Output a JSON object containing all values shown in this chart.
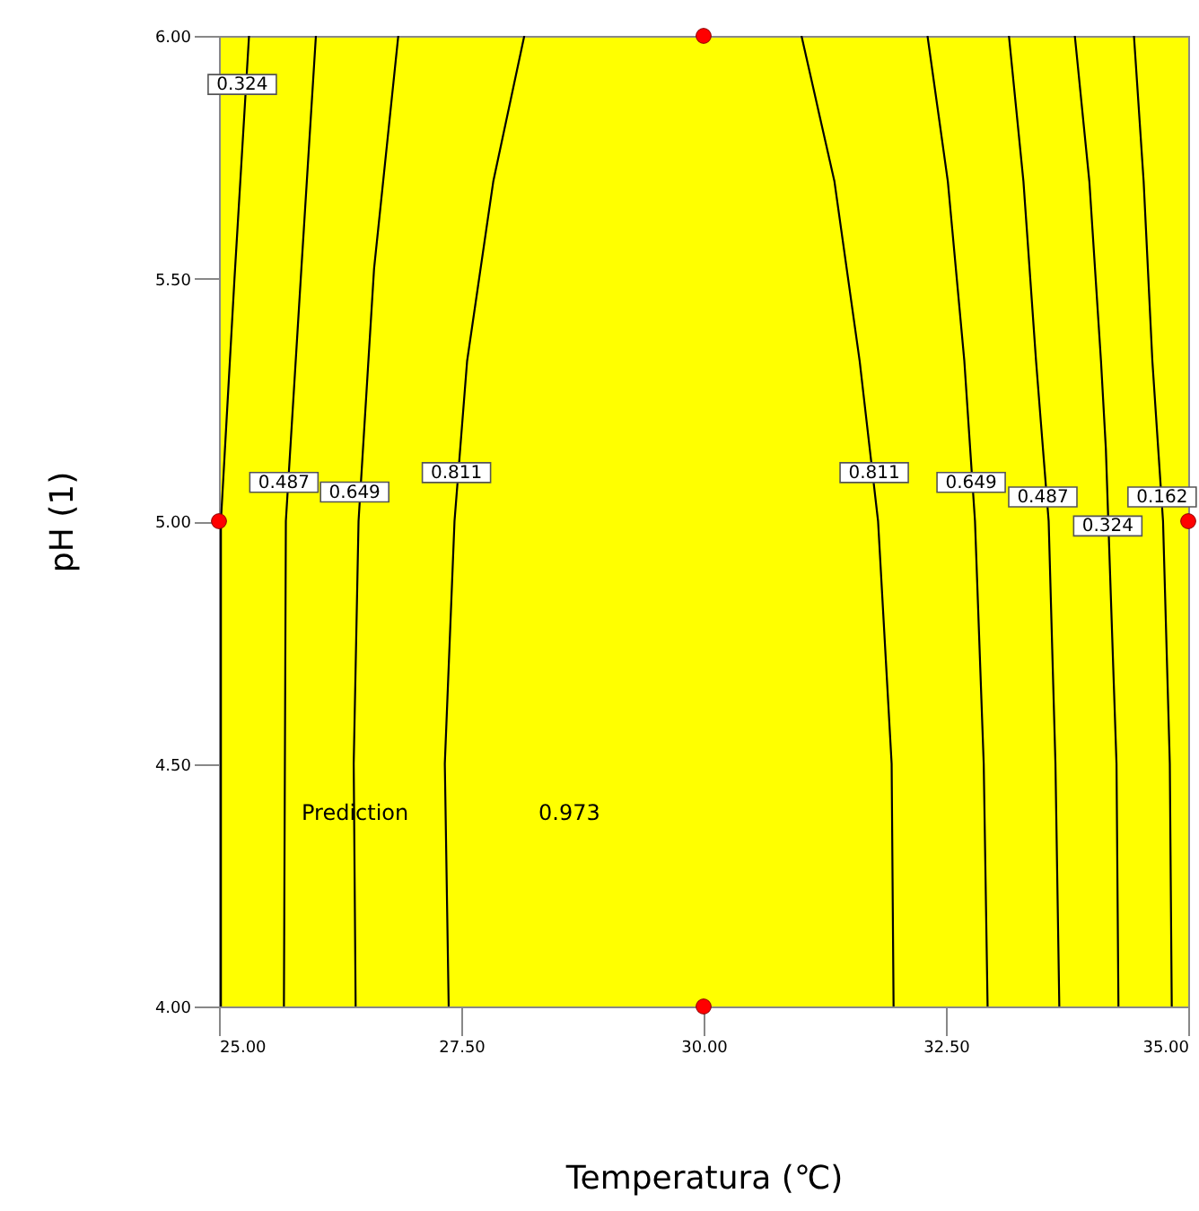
{
  "chart_data": {
    "type": "line",
    "xlabel": "Temperatura (℃)",
    "ylabel": "pH (1)",
    "xlim": [
      25,
      35
    ],
    "ylim": [
      4,
      6
    ],
    "xticks": [
      {
        "value": 25,
        "label": "25.00"
      },
      {
        "value": 27.5,
        "label": "27.50"
      },
      {
        "value": 30,
        "label": "30.00"
      },
      {
        "value": 32.5,
        "label": "32.50"
      },
      {
        "value": 35,
        "label": "35.00"
      }
    ],
    "yticks": [
      {
        "value": 4,
        "label": "4.00"
      },
      {
        "value": 4.5,
        "label": "4.50"
      },
      {
        "value": 5,
        "label": "5.00"
      },
      {
        "value": 5.5,
        "label": "5.50"
      },
      {
        "value": 6,
        "label": "6.00"
      }
    ],
    "grid": false,
    "series": [
      {
        "color": "#000000",
        "marker": "none",
        "x": [
          25.31,
          25.16,
          25.02,
          25.02
        ],
        "values": [
          6.0,
          5.5,
          5.0,
          4.0
        ]
      },
      {
        "color": "#000000",
        "marker": "none",
        "x": [
          26.0,
          25.85,
          25.69,
          25.67
        ],
        "values": [
          6.0,
          5.52,
          5.0,
          4.0
        ]
      },
      {
        "color": "#000000",
        "marker": "none",
        "x": [
          26.85,
          26.6,
          26.44,
          26.39,
          26.41
        ],
        "values": [
          6.0,
          5.52,
          5.0,
          4.5,
          4.0
        ]
      },
      {
        "color": "#000000",
        "marker": "none",
        "x": [
          28.15,
          27.83,
          27.56,
          27.43,
          27.33,
          27.37
        ],
        "values": [
          6.0,
          5.7,
          5.33,
          5.0,
          4.5,
          4.0
        ]
      },
      {
        "color": "#000000",
        "marker": "none",
        "x": [
          31.01,
          31.35,
          31.61,
          31.8,
          31.94,
          31.96
        ],
        "values": [
          6.0,
          5.7,
          5.33,
          5.0,
          4.5,
          4.0
        ]
      },
      {
        "color": "#000000",
        "marker": "none",
        "x": [
          32.31,
          32.52,
          32.69,
          32.8,
          32.89,
          32.93
        ],
        "values": [
          6.0,
          5.7,
          5.33,
          5.0,
          4.5,
          4.0
        ]
      },
      {
        "color": "#000000",
        "marker": "none",
        "x": [
          33.15,
          33.3,
          33.43,
          33.56,
          33.63,
          33.67
        ],
        "values": [
          6.0,
          5.7,
          5.33,
          5.0,
          4.5,
          4.0
        ]
      },
      {
        "color": "#000000",
        "marker": "none",
        "x": [
          33.83,
          33.98,
          34.1,
          34.15,
          34.26,
          34.28
        ],
        "values": [
          6.0,
          5.7,
          5.33,
          5.15,
          4.5,
          4.0
        ]
      },
      {
        "color": "#000000",
        "marker": "none",
        "x": [
          34.44,
          34.54,
          34.63,
          34.74,
          34.81,
          34.83
        ],
        "values": [
          6.0,
          5.7,
          5.33,
          5.0,
          4.5,
          4.0
        ]
      },
      {
        "type": "scatter",
        "color": "#ff0000",
        "marker": "circle",
        "x": [
          30,
          25,
          30,
          35
        ],
        "values": [
          6,
          5,
          4,
          5
        ]
      }
    ],
    "annotations": [
      {
        "text": "0.324",
        "x": 25.24,
        "y": 5.9
      },
      {
        "text": "0.487",
        "x": 25.67,
        "y": 5.08
      },
      {
        "text": "0.649",
        "x": 26.4,
        "y": 5.06
      },
      {
        "text": "0.811",
        "x": 27.45,
        "y": 5.1
      },
      {
        "text": "0.811",
        "x": 31.76,
        "y": 5.1
      },
      {
        "text": "0.649",
        "x": 32.76,
        "y": 5.08
      },
      {
        "text": "0.487",
        "x": 33.5,
        "y": 5.05
      },
      {
        "text": "0.324",
        "x": 34.17,
        "y": 4.99
      },
      {
        "text": "0.162",
        "x": 34.73,
        "y": 5.05
      },
      "Prediction",
      "0.973"
    ]
  }
}
